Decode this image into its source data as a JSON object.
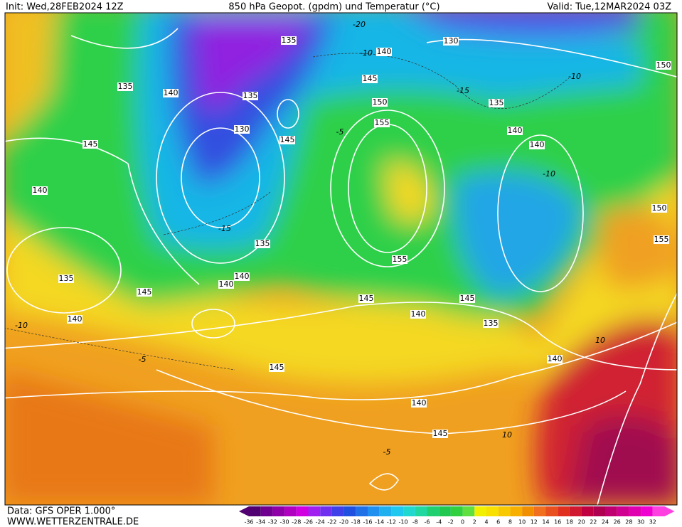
{
  "header": {
    "init": "Init: Wed,28FEB2024 12Z",
    "title": "850 hPa Geopot. (gpdm) und Temperatur (°C)",
    "valid": "Valid: Tue,12MAR2024 03Z"
  },
  "footer": {
    "source": "Data: GFS OPER 1.000°",
    "site": "WWW.WETTERZENTRALE.DE"
  },
  "scale": [
    "-36",
    "-34",
    "-32",
    "-30",
    "-28",
    "-26",
    "-24",
    "-22",
    "-20",
    "-18",
    "-16",
    "-14",
    "-12",
    "-10",
    "-8",
    "-6",
    "-4",
    "-2",
    "0",
    "2",
    "4",
    "6",
    "8",
    "10",
    "12",
    "14",
    "16",
    "18",
    "20",
    "22",
    "24",
    "26",
    "28",
    "30",
    "32"
  ],
  "geopotential_labels": [
    "135",
    "130",
    "140",
    "150",
    "135",
    "140",
    "135",
    "145",
    "150",
    "135",
    "130",
    "155",
    "140",
    "145",
    "145",
    "140",
    "140",
    "150",
    "135",
    "155",
    "155",
    "135",
    "140",
    "140",
    "145",
    "145",
    "145",
    "140",
    "140",
    "135",
    "140",
    "145",
    "140",
    "145"
  ],
  "temperature_labels": [
    "-20",
    "-15",
    "-10",
    "-10",
    "-10",
    "-15",
    "-5",
    "-10",
    "-5",
    "10",
    "10",
    "-5"
  ]
}
